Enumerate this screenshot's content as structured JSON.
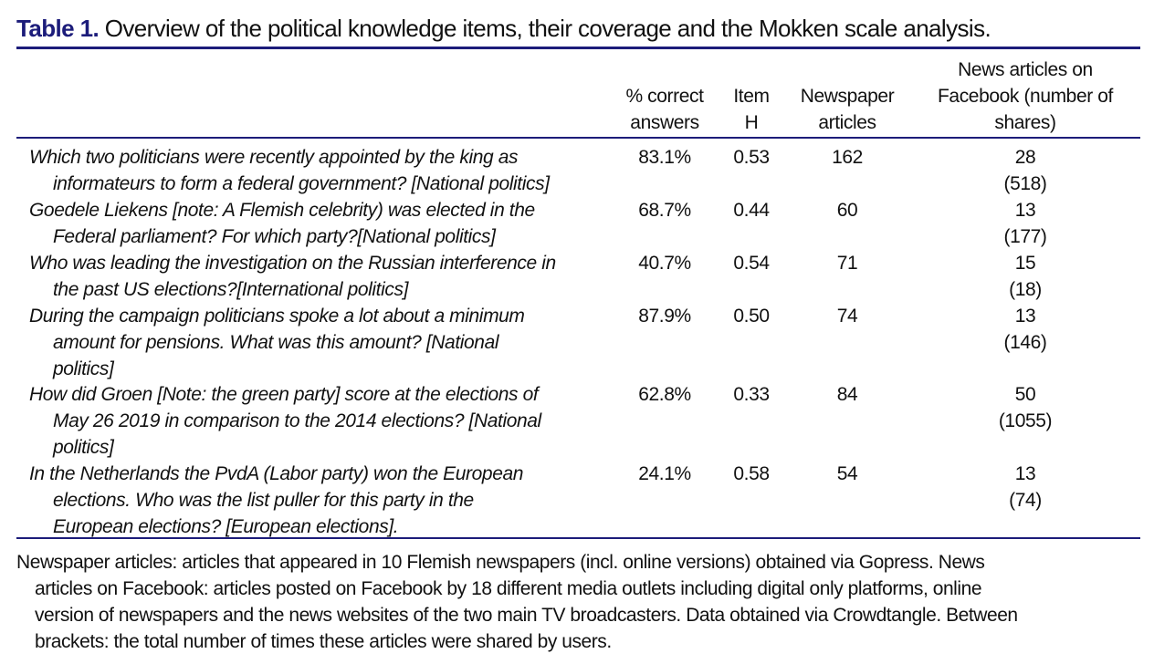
{
  "title": {
    "label": "Table 1.",
    "text": "Overview of the political knowledge items, their coverage and the Mokken scale analysis."
  },
  "headers": {
    "pct": [
      "% correct",
      "answers"
    ],
    "itemh": [
      "Item",
      "H"
    ],
    "news": [
      "Newspaper",
      "articles"
    ],
    "fb": [
      "News articles on",
      "Facebook (number of",
      "shares)"
    ]
  },
  "rows": [
    {
      "question": [
        "Which two politicians were recently appointed by the king as",
        "informateurs to form a federal government? [National politics]"
      ],
      "pct": "83.1%",
      "itemh": "0.53",
      "news": "162",
      "fb": "28",
      "shares": "(518)"
    },
    {
      "question": [
        "Goedele Liekens [note: A Flemish celebrity) was elected in the",
        "Federal parliament? For which party?[National politics]"
      ],
      "pct": "68.7%",
      "itemh": "0.44",
      "news": "60",
      "fb": "13",
      "shares": "(177)"
    },
    {
      "question": [
        "Who was leading the investigation on the Russian interference in",
        "the past US elections?[International politics]"
      ],
      "pct": "40.7%",
      "itemh": "0.54",
      "news": "71",
      "fb": "15",
      "shares": "(18)"
    },
    {
      "question": [
        "During the campaign politicians spoke a lot about a minimum",
        "amount for pensions. What was this amount? [National",
        "politics]"
      ],
      "pct": "87.9%",
      "itemh": "0.50",
      "news": "74",
      "fb": "13",
      "shares": "(146)"
    },
    {
      "question": [
        "How did Groen [Note: the green party] score at the elections of",
        "May 26 2019 in comparison to the 2014 elections? [National",
        "politics]"
      ],
      "pct": "62.8%",
      "itemh": "0.33",
      "news": "84",
      "fb": "50",
      "shares": "(1055)"
    },
    {
      "question": [
        "In the Netherlands the PvdA (Labor party) won the European",
        "elections. Who was the list puller for this party in the",
        "European elections? [European elections]."
      ],
      "pct": "24.1%",
      "itemh": "0.58",
      "news": "54",
      "fb": "13",
      "shares": "(74)"
    }
  ],
  "note": [
    "Newspaper articles: articles that appeared in 10 Flemish newspapers (incl. online versions) obtained via Gopress. News",
    "articles on Facebook: articles posted on Facebook by 18 different media outlets including digital only platforms, online",
    "version of newspapers and the news websites of the two main TV broadcasters. Data obtained via Crowdtangle. Between",
    "brackets: the total number of times these articles were shared by users."
  ]
}
